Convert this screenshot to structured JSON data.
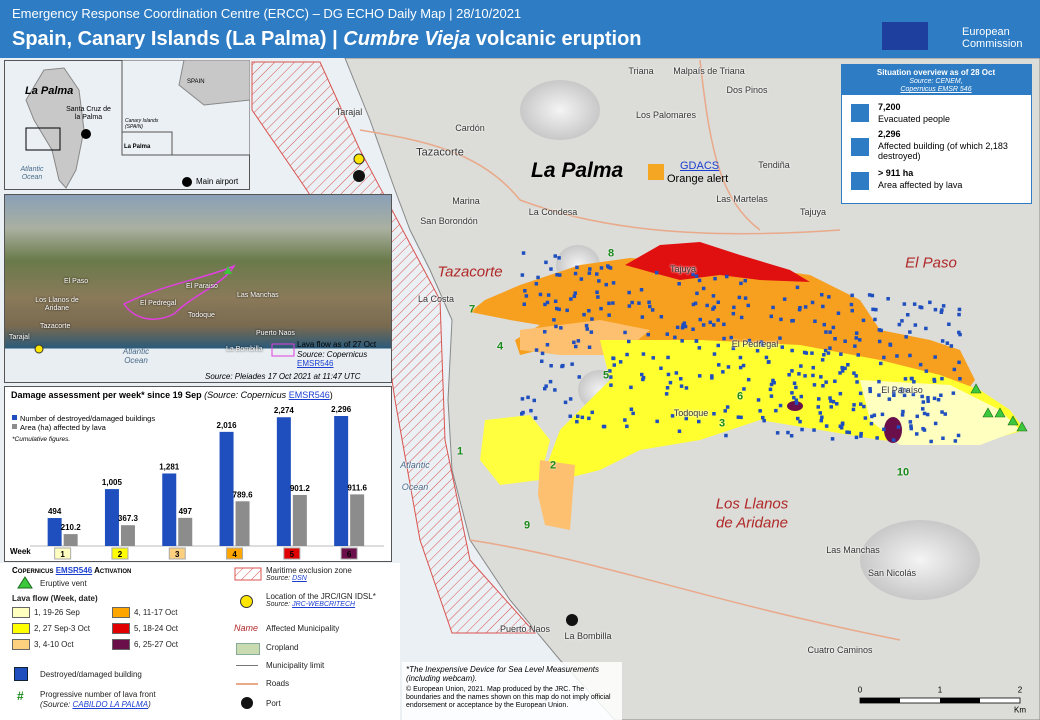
{
  "header": {
    "subtitle": "Emergency Response Coordination Centre (ERCC) – DG ECHO Daily Map | 28/10/2021",
    "title_main": "Spain, Canary Islands (La Palma) | ",
    "title_italic": "Cumbre Vieja",
    "title_end": " volcanic eruption",
    "logo": [
      "European",
      "Commission"
    ]
  },
  "situation": {
    "title": "Situation overview as of 28 Oct",
    "source": "Source: CENEM,",
    "source_link": "Copernicus EMSR 546",
    "items": [
      {
        "value": "7,200",
        "label": "Evacuated people"
      },
      {
        "value": "2,296",
        "label": "Affected building (of which 2,183 destroyed)"
      },
      {
        "value": "> 911 ha",
        "label": "Area affected by lava"
      }
    ]
  },
  "locator": {
    "island": "La Palma",
    "capital": "Santa Cruz de la Palma",
    "ocean": "Atlantic Ocean",
    "airport": "Main airport",
    "spain": "SPAIN",
    "canary": "Canary Islands (SPAIN)",
    "la_palma_small": "La Palma"
  },
  "photo": {
    "labels": [
      "El Paso",
      "Los Llanos de Aridane",
      "Tazacorte",
      "El Pedregal",
      "Todoque",
      "Las Manchas",
      "Puerto Naos",
      "La Bombilla",
      "Tarajal",
      "Atlantic Ocean",
      "El Paraiso"
    ],
    "lava_legend": "Lava flow as of 27 Oct",
    "lava_source": "Source: Copernicus",
    "lava_source_link": "EMSR546",
    "source": "Source: Pleiades 17 Oct 2021 at 11:47 UTC"
  },
  "chart_data": {
    "type": "bar",
    "title": "Damage assessment per week* since 19 Sep",
    "source": "(Source: Copernicus",
    "source_link": "EMSR546",
    "source_end": ")",
    "note": "*Cumulative figures.",
    "category_axis": "Week",
    "categories": [
      "1",
      "2",
      "3",
      "4",
      "5",
      "6"
    ],
    "category_colors": [
      "#ffffc0",
      "#ffff00",
      "#fdd080",
      "#ffa500",
      "#e00000",
      "#6a0f4a"
    ],
    "series": [
      {
        "name": "Number of destroyed/damaged buildings",
        "color": "#1f4fbf",
        "values": [
          494,
          1005,
          1281,
          2016,
          2274,
          2296
        ],
        "value_labels": [
          "494",
          "1,005",
          "1,281",
          "2,016",
          "2,274",
          "2,296"
        ]
      },
      {
        "name": "Area (ha) affected by lava",
        "color": "#8c8c8c",
        "values": [
          210.2,
          367.3,
          497,
          789.6,
          901.2,
          911.6
        ]
      }
    ]
  },
  "map": {
    "island": "La Palma",
    "gdacs": "GDACS",
    "alert": "Orange alert",
    "municipalities": [
      "Tazacorte",
      "El Paso",
      "Los Llanos",
      "de Aridane"
    ],
    "places": [
      "Triana",
      "Malpaís de Triana",
      "Dos Pinos",
      "Los Palomares",
      "Tendiña",
      "Cardón",
      "Tazacorte",
      "Marina",
      "San Borondón",
      "La Condesa",
      "Las Martelas",
      "Tajuya",
      "La Costa",
      "Tajuya",
      "El Pedregal",
      "El Paraíso",
      "Todoque",
      "Las Manchas",
      "San Nicolás",
      "Puerto Naos",
      "La Bombilla",
      "Cuatro Caminos",
      "Tarajal",
      "Atlantic",
      "Ocean"
    ],
    "fronts": [
      "8",
      "7",
      "4",
      "5",
      "6",
      "3",
      "1",
      "2",
      "9",
      "10"
    ],
    "scale": [
      "0",
      "1",
      "2",
      "Km"
    ]
  },
  "legend": {
    "copernicus": "Copernicus",
    "copernicus_link": "EMSR546",
    "activation": "Activation",
    "vent": "Eruptive vent",
    "lava_title": "Lava flow (Week, date)",
    "lava": [
      "1, 19-26 Sep",
      "2, 27 Sep-3 Oct",
      "3, 4-10 Oct",
      "4, 11-17 Oct",
      "5, 18-24 Oct",
      "6, 25-27 Oct"
    ],
    "building": "Destroyed/damaged building",
    "front": "Progressive number of lava front",
    "front_source": "(Source:",
    "front_link": "CABILDO LA PALMA",
    "front_end": ")",
    "maritime": "Maritime exclusion zone",
    "maritime_source": "Source:",
    "maritime_link": "DSN",
    "jrc": "Location of the JRC/IGN IDSL*",
    "jrc_source": "Source:",
    "jrc_link": "JRC-WEBCRITECH",
    "name_sample": "Name",
    "municipality": "Affected Municipality",
    "cropland": "Cropland",
    "limit": "Municipality limit",
    "roads": "Roads",
    "port": "Port",
    "footnote": "*The Inexpensive Device for Sea Level Measurements (including webcam).",
    "copyright": "© European Union, 2021. Map produced by the JRC. The boundaries and the names shown on this map do not imply official endorsement or acceptance by the European Union."
  }
}
